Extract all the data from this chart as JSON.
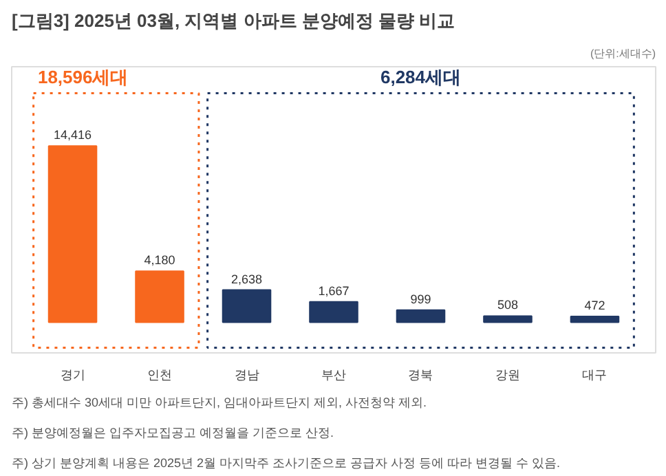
{
  "chart_data": {
    "type": "bar",
    "title": "[그림3] 2025년 03월, 지역별 아파트 분양예정 물량 비교",
    "subtitle": "(단위:세대수)",
    "categories": [
      "경기",
      "인천",
      "경남",
      "부산",
      "경북",
      "강원",
      "대구"
    ],
    "values": [
      14416,
      4180,
      2638,
      1667,
      999,
      508,
      472
    ],
    "value_labels": [
      "14,416",
      "4,180",
      "2,638",
      "1,667",
      "999",
      "508",
      "472"
    ],
    "colors": [
      "#f7671e",
      "#f7671e",
      "#203864",
      "#203864",
      "#203864",
      "#203864",
      "#203864"
    ],
    "annotations": [
      "18,596세대",
      "6,284세대",
      "주) 총세대수 30세대 미만 아파트단지, 임대아파트단지 제외, 사전청약 제외.",
      "주) 분양예정월은 입주자모집공고 예정월을 기준으로 산정.",
      "주) 상기 분양계획 내용은 2025년 2월  마지막주  조사기준으로 공급자 사정 등에 따라 변경될 수 있음."
    ]
  }
}
